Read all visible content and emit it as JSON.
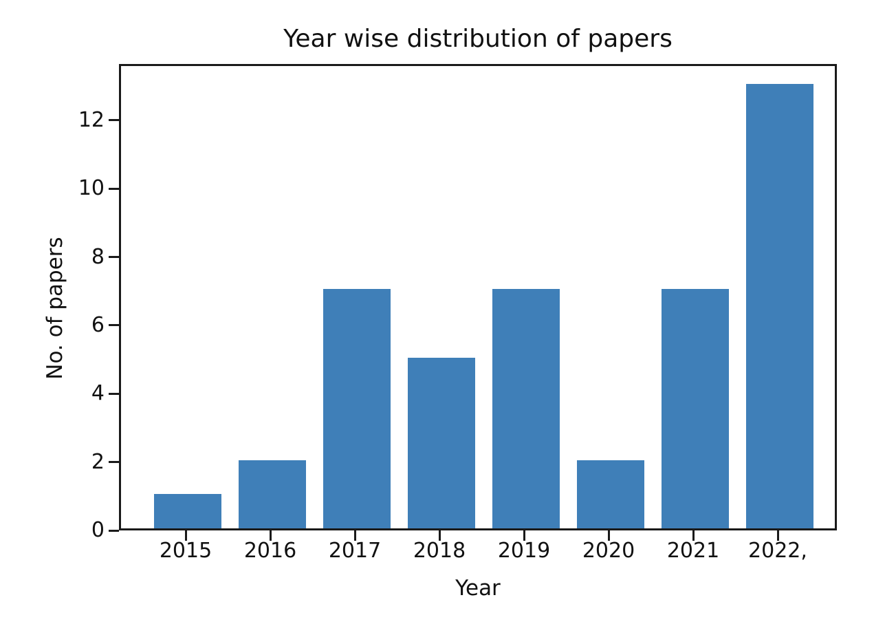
{
  "chart_data": {
    "type": "bar",
    "title": "Year wise distribution of papers",
    "xlabel": "Year",
    "ylabel": "No. of papers",
    "categories": [
      "2015",
      "2016",
      "2017",
      "2018",
      "2019",
      "2020",
      "2021",
      "2022,"
    ],
    "values": [
      1,
      2,
      7,
      5,
      7,
      2,
      7,
      13
    ],
    "yticks": [
      0,
      2,
      4,
      6,
      8,
      10,
      12
    ],
    "ylim": [
      0,
      13.65
    ],
    "bar_color": "#3f7fb8",
    "axis_color": "#1a1a1a",
    "text_color": "#111111",
    "background_color": "#ffffff",
    "grid": false,
    "legend": "none"
  }
}
